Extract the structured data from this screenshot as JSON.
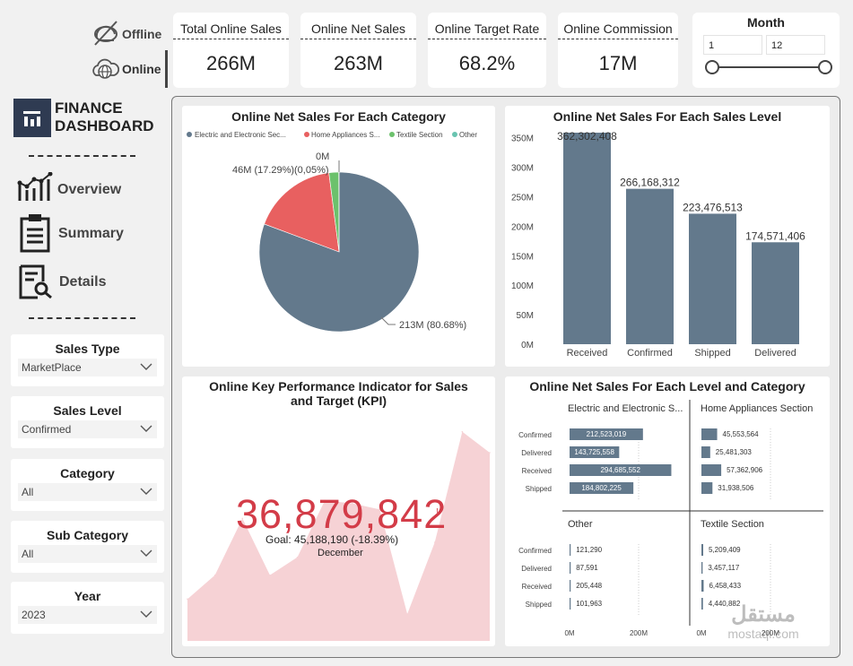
{
  "toggle": {
    "offline_label": "Offline",
    "online_label": "Online"
  },
  "kpis": [
    {
      "title": "Total Online Sales",
      "value": "266M"
    },
    {
      "title": "Online Net Sales",
      "value": "263M"
    },
    {
      "title": "Online Target Rate",
      "value": "68.2%"
    },
    {
      "title": "Online Commission",
      "value": "17M"
    }
  ],
  "month_slicer": {
    "title": "Month",
    "min": "1",
    "max": "12"
  },
  "brand": {
    "line1": "FINANCE",
    "line2": "DASHBOARD"
  },
  "nav": [
    {
      "label": "Overview",
      "icon": "line-chart-icon"
    },
    {
      "label": "Summary",
      "icon": "clipboard-icon"
    },
    {
      "label": "Details",
      "icon": "document-search-icon"
    }
  ],
  "filters": [
    {
      "title": "Sales Type",
      "value": "MarketPlace"
    },
    {
      "title": "Sales Level",
      "value": "Confirmed"
    },
    {
      "title": "Category",
      "value": "All"
    },
    {
      "title": "Sub Category",
      "value": "All"
    },
    {
      "title": "Year",
      "value": "2023"
    }
  ],
  "colors": {
    "slate": "#63798c",
    "red": "#e86060",
    "green": "#6cc16c",
    "teal": "#69c4b0",
    "kpi_red": "#d33c48",
    "area_pink": "#f6d2d5"
  },
  "pie_panel": {
    "title": "Online Net Sales For Each Category",
    "legend": [
      "Electric and Electronic Sec...",
      "Home Appliances S...",
      "Textile Section",
      "Other"
    ],
    "labels": {
      "big": "213M (80.68%)",
      "mid": "46M (17.29%)",
      "small": "(0,05%)",
      "tiny": "0M"
    }
  },
  "bar_panel": {
    "title": "Online Net Sales For Each Sales Level",
    "data_labels": [
      "362,302,408",
      "266,168,312",
      "223,476,513",
      "174,571,406"
    ]
  },
  "kpi_panel": {
    "title": "Online Key Performance Indicator for Sales and Target (KPI)",
    "value": "36,879,842",
    "indicator": "!",
    "goal": "Goal: 45,188,190 (-18.39%)",
    "period": "December"
  },
  "matrix_panel": {
    "title": "Online Net Sales For Each Level and Category",
    "rows": [
      "Confirmed",
      "Delivered",
      "Received",
      "Shipped"
    ],
    "cells": [
      {
        "name": "Electric and Electronic S...",
        "labels": [
          "212,523,019",
          "143,725,558",
          "294,685,552",
          "184,802,225"
        ],
        "values": [
          212523019,
          143725558,
          294685552,
          184802225
        ]
      },
      {
        "name": "Home Appliances Section",
        "labels": [
          "45,553,564",
          "25,481,303",
          "57,362,906",
          "31,938,506"
        ],
        "values": [
          45553564,
          25481303,
          57362906,
          31938506
        ]
      },
      {
        "name": "Other",
        "labels": [
          "121,290",
          "87,591",
          "205,448",
          "101,963"
        ],
        "values": [
          121290,
          87591,
          205448,
          101963
        ]
      },
      {
        "name": "Textile Section",
        "labels": [
          "5,209,409",
          "3,457,117",
          "6,458,433",
          "4,440,882"
        ],
        "values": [
          5209409,
          3457117,
          6458433,
          4440882
        ]
      }
    ],
    "axis_ticks": [
      "0M",
      "200M"
    ]
  },
  "watermark": {
    "arabic": "مستقل",
    "latin": "mostaql.com"
  },
  "chart_data": [
    {
      "type": "pie",
      "title": "Online Net Sales For Each Category",
      "categories": [
        "Electric and Electronic Section",
        "Home Appliances Section",
        "Textile Section",
        "Other"
      ],
      "values": [
        80.68,
        17.29,
        1.98,
        0.05
      ],
      "legend": "top"
    },
    {
      "type": "bar",
      "title": "Online Net Sales For Each Sales Level",
      "categories": [
        "Received",
        "Confirmed",
        "Shipped",
        "Delivered"
      ],
      "values": [
        362302408,
        266168312,
        223476513,
        174571406
      ],
      "yticks": [
        "0M",
        "50M",
        "100M",
        "150M",
        "200M",
        "250M",
        "300M",
        "350M"
      ],
      "ylim": [
        0,
        362302408
      ],
      "xlabel": "",
      "ylabel": ""
    },
    {
      "type": "area",
      "title": "Online Key Performance Indicator for Sales and Target (KPI)",
      "x": [
        1,
        2,
        3,
        4,
        5,
        6,
        7,
        8,
        9,
        10,
        11,
        12
      ],
      "values": [
        14,
        22,
        41,
        22,
        28,
        47,
        46,
        44,
        9,
        33,
        70,
        63
      ],
      "ylim": [
        0,
        78
      ]
    }
  ]
}
